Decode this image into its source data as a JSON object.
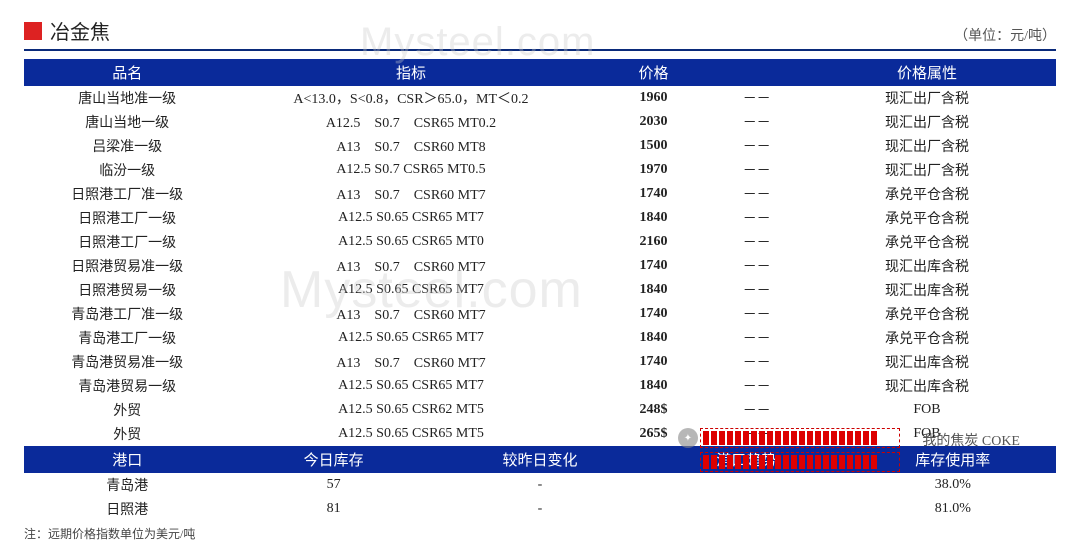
{
  "header": {
    "title": "冶金焦",
    "unit": "（单位：元/吨）"
  },
  "priceTable": {
    "columns": [
      "品名",
      "指标",
      "价格",
      "",
      "价格属性"
    ],
    "colWidths": [
      "20%",
      "35%",
      "12%",
      "8%",
      "25%"
    ],
    "rows": [
      [
        "唐山当地准一级",
        "A<13.0，S<0.8，CSR＞65.0，MT＜0.2",
        "1960",
        "－－",
        "现汇出厂含税"
      ],
      [
        "唐山当地一级",
        "A12.5　S0.7　CSR65 MT0.2",
        "2030",
        "－－",
        "现汇出厂含税"
      ],
      [
        "吕梁准一级",
        "A13　S0.7　CSR60  MT8",
        "1500",
        "－－",
        "现汇出厂含税"
      ],
      [
        "临汾一级",
        "A12.5  S0.7  CSR65  MT0.5",
        "1970",
        "－－",
        "现汇出厂含税"
      ],
      [
        "日照港工厂准一级",
        "A13　S0.7　CSR60  MT7",
        "1740",
        "－－",
        "承兑平仓含税"
      ],
      [
        "日照港工厂一级",
        "A12.5  S0.65  CSR65  MT7",
        "1840",
        "－－",
        "承兑平仓含税"
      ],
      [
        "日照港工厂一级",
        "A12.5  S0.65  CSR65  MT0",
        "2160",
        "－－",
        "承兑平仓含税"
      ],
      [
        "日照港贸易准一级",
        "A13　S0.7　CSR60  MT7",
        "1740",
        "－－",
        "现汇出库含税"
      ],
      [
        "日照港贸易一级",
        "A12.5  S0.65  CSR65  MT7",
        "1840",
        "－－",
        "现汇出库含税"
      ],
      [
        "青岛港工厂准一级",
        "A13　S0.7　CSR60  MT7",
        "1740",
        "－－",
        "承兑平仓含税"
      ],
      [
        "青岛港工厂一级",
        "A12.5  S0.65  CSR65  MT7",
        "1840",
        "－－",
        "承兑平仓含税"
      ],
      [
        "青岛港贸易准一级",
        "A13　S0.7　CSR60  MT7",
        "1740",
        "－－",
        "现汇出库含税"
      ],
      [
        "青岛港贸易一级",
        "A12.5  S0.65  CSR65  MT7",
        "1840",
        "－－",
        "现汇出库含税"
      ],
      [
        "外贸",
        "A12.5  S0.65  CSR62  MT5",
        "248$",
        "－－",
        "FOB"
      ],
      [
        "外贸",
        "A12.5  S0.65  CSR65  MT5",
        "265$",
        "－－",
        "FOB"
      ]
    ]
  },
  "portTable": {
    "columns": [
      "港口",
      "今日库存",
      "较昨日变化",
      "港口趋势",
      "库存使用率"
    ],
    "colWidths": [
      "20%",
      "20%",
      "20%",
      "20%",
      "20%"
    ],
    "rows": [
      [
        "青岛港",
        "57",
        "-",
        "",
        "38.0%"
      ],
      [
        "日照港",
        "81",
        "-",
        "",
        "81.0%"
      ]
    ]
  },
  "footnote": "注：远期价格指数单位为美元/吨",
  "watermarks": {
    "w1": "Mysteel.com",
    "w2": "Mysteel.com"
  },
  "overlay": {
    "label": "我的焦炭 COKE"
  },
  "colors": {
    "headerBg": "#0a2a9a",
    "headerText": "#ffffff",
    "accentRed": "#d22222",
    "titleBorder": "#0a2a7a"
  }
}
